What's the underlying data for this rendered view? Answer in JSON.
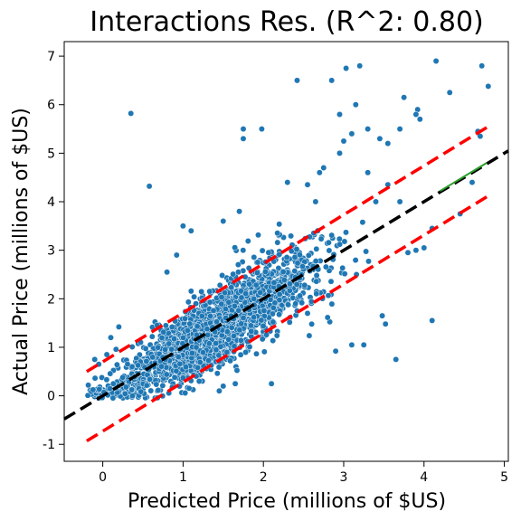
{
  "chart_data": {
    "type": "scatter",
    "title": "Interactions Res. (R^2: 0.80)",
    "xlabel": "Predicted Price (millions of $US)",
    "ylabel": "Actual Price (millions of $US)",
    "xlim": [
      -0.48,
      5.05
    ],
    "ylim": [
      -1.35,
      7.3
    ],
    "x_ticks": [
      "0",
      "1",
      "2",
      "3",
      "4",
      "5"
    ],
    "y_ticks": [
      "-1",
      "0",
      "1",
      "2",
      "3",
      "4",
      "5",
      "6",
      "7"
    ],
    "grid": false,
    "point_color": "#1f77b4",
    "point_edge_color": "#ffffff",
    "cloud": {
      "count": 2200,
      "x_range": [
        -0.2,
        4.8
      ],
      "x_center": 1.4,
      "residual_sd": 0.37
    },
    "outliers": [
      {
        "x": 0.35,
        "y": 5.82
      },
      {
        "x": 0.58,
        "y": 4.32
      },
      {
        "x": 1.75,
        "y": 5.5
      },
      {
        "x": 1.75,
        "y": 5.3
      },
      {
        "x": 1.98,
        "y": 5.5
      },
      {
        "x": 2.42,
        "y": 6.5
      },
      {
        "x": 2.85,
        "y": 6.5
      },
      {
        "x": 3.03,
        "y": 6.75
      },
      {
        "x": 3.2,
        "y": 6.8
      },
      {
        "x": 3.15,
        "y": 6.0
      },
      {
        "x": 2.95,
        "y": 5.8
      },
      {
        "x": 3.75,
        "y": 6.15
      },
      {
        "x": 4.15,
        "y": 6.9
      },
      {
        "x": 4.32,
        "y": 6.25
      },
      {
        "x": 4.72,
        "y": 6.8
      },
      {
        "x": 4.8,
        "y": 6.38
      },
      {
        "x": 3.92,
        "y": 5.9
      },
      {
        "x": 3.9,
        "y": 5.8
      },
      {
        "x": 3.95,
        "y": 5.7
      },
      {
        "x": 3.7,
        "y": 5.5
      },
      {
        "x": 3.1,
        "y": 5.4
      },
      {
        "x": 3.3,
        "y": 5.5
      },
      {
        "x": 3.0,
        "y": 5.25
      },
      {
        "x": 2.95,
        "y": 5.0
      },
      {
        "x": 3.45,
        "y": 5.3
      },
      {
        "x": 3.55,
        "y": 5.2
      },
      {
        "x": 4.67,
        "y": 5.45
      },
      {
        "x": 4.7,
        "y": 5.35
      },
      {
        "x": 4.1,
        "y": 1.55
      },
      {
        "x": 3.65,
        "y": 0.75
      },
      {
        "x": 3.52,
        "y": 1.48
      },
      {
        "x": 3.48,
        "y": 1.65
      },
      {
        "x": 3.25,
        "y": 1.05
      },
      {
        "x": 3.1,
        "y": 1.05
      },
      {
        "x": 2.9,
        "y": 0.92
      },
      {
        "x": 2.42,
        "y": 1.75
      },
      {
        "x": 1.0,
        "y": 3.5
      },
      {
        "x": 1.1,
        "y": 3.4
      },
      {
        "x": 0.8,
        "y": 2.55
      },
      {
        "x": 0.92,
        "y": 2.9
      },
      {
        "x": 1.5,
        "y": 3.6
      },
      {
        "x": 1.7,
        "y": 3.8
      },
      {
        "x": 0.05,
        "y": 0.85
      },
      {
        "x": 0.1,
        "y": 1.2
      },
      {
        "x": 0.2,
        "y": 1.42
      },
      {
        "x": -0.18,
        "y": 0.22
      },
      {
        "x": -0.1,
        "y": 0.75
      },
      {
        "x": -0.05,
        "y": 0.65
      },
      {
        "x": 2.55,
        "y": 1.7
      },
      {
        "x": 3.9,
        "y": 3.0
      },
      {
        "x": 4.0,
        "y": 3.05
      },
      {
        "x": 4.1,
        "y": 3.45
      },
      {
        "x": 3.8,
        "y": 2.95
      },
      {
        "x": 4.45,
        "y": 3.75
      },
      {
        "x": 4.6,
        "y": 4.4
      },
      {
        "x": 3.55,
        "y": 4.35
      },
      {
        "x": 3.7,
        "y": 4.0
      },
      {
        "x": 3.4,
        "y": 4.0
      },
      {
        "x": 2.7,
        "y": 4.6
      },
      {
        "x": 2.75,
        "y": 4.7
      },
      {
        "x": 3.3,
        "y": 4.6
      },
      {
        "x": 2.3,
        "y": 4.4
      },
      {
        "x": 2.55,
        "y": 4.35
      },
      {
        "x": 2.65,
        "y": 4.0
      },
      {
        "x": 2.1,
        "y": 0.25
      },
      {
        "x": 1.65,
        "y": 0.25
      },
      {
        "x": 1.45,
        "y": 0.1
      },
      {
        "x": 1.2,
        "y": 0.3
      },
      {
        "x": 1.5,
        "y": 0.2
      }
    ],
    "lines": [
      {
        "role": "fit",
        "color": "#000000",
        "style": "dashed",
        "x": [
          -0.48,
          5.05
        ],
        "y": [
          -0.48,
          5.05
        ]
      },
      {
        "role": "upper band",
        "color": "#ff0000",
        "style": "dashed",
        "x": [
          -0.2,
          4.8
        ],
        "y": [
          0.5,
          5.55
        ]
      },
      {
        "role": "lower band",
        "color": "#ff0000",
        "style": "dashed",
        "x": [
          -0.2,
          4.8
        ],
        "y": [
          -0.93,
          4.12
        ]
      },
      {
        "role": "reference",
        "color": "#2ca02c",
        "style": "solid",
        "x": [
          4.2,
          4.78
        ],
        "y": [
          4.22,
          4.8
        ]
      }
    ]
  }
}
